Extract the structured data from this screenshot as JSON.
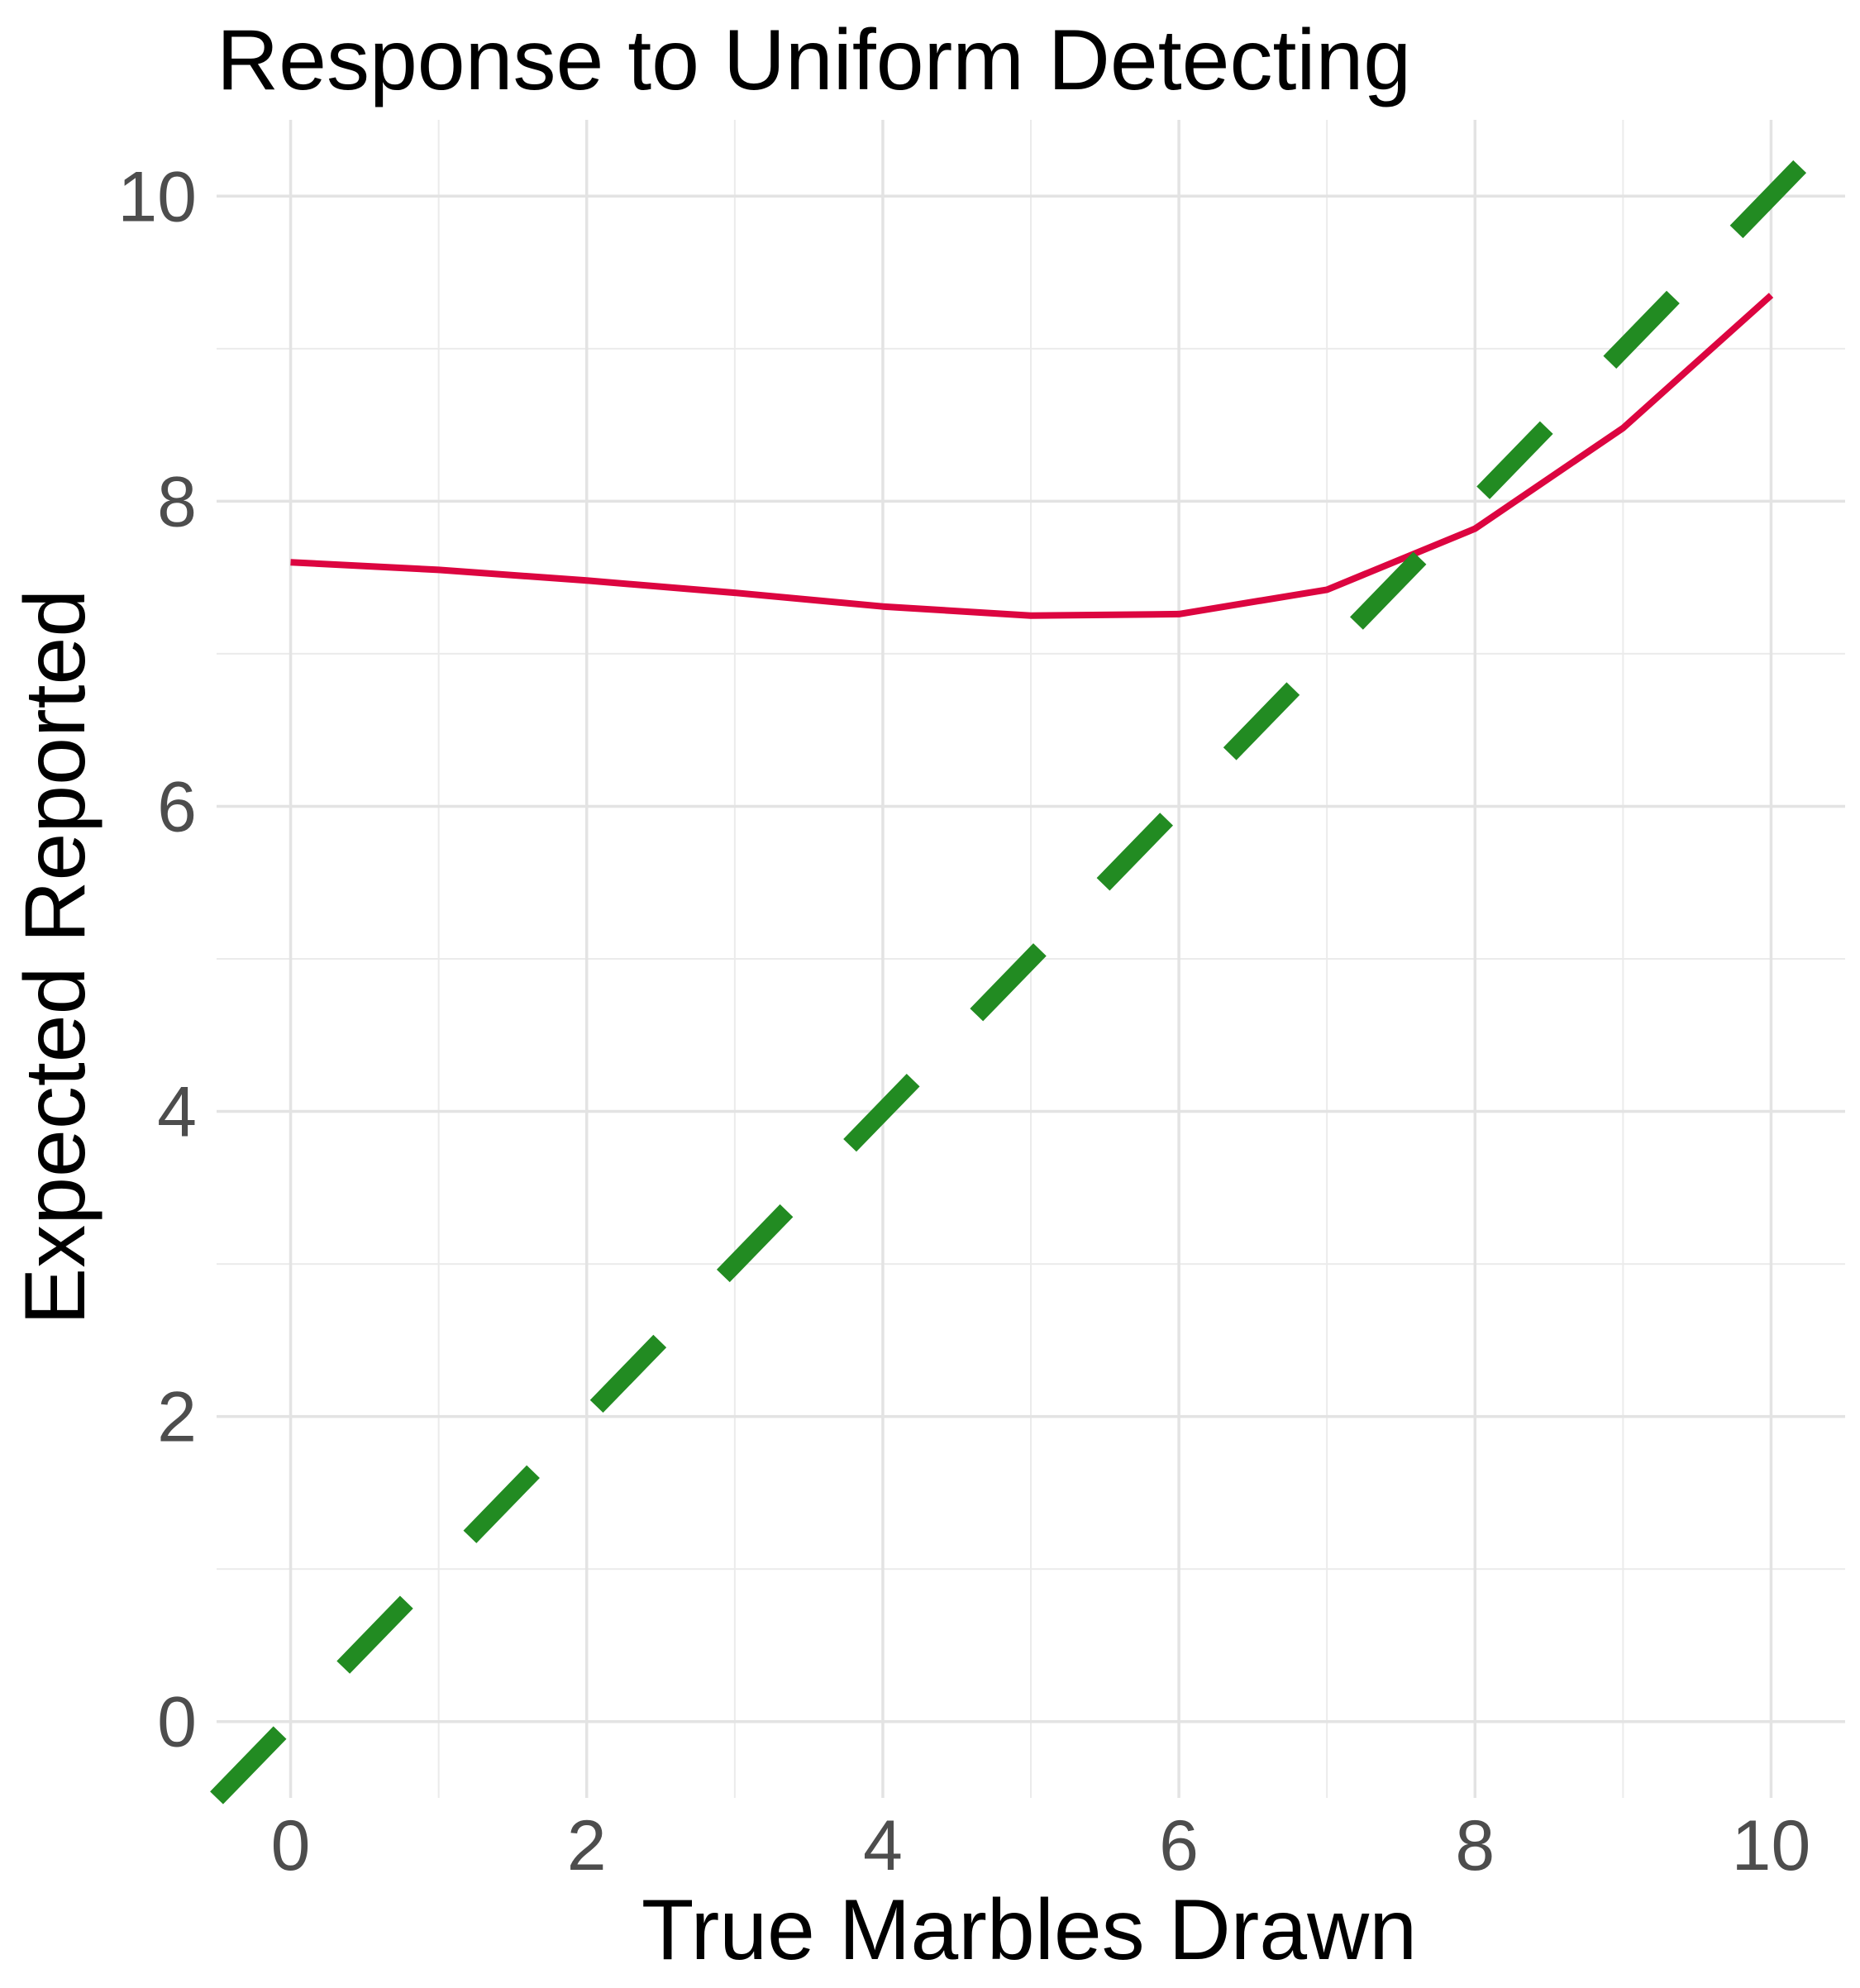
{
  "chart_data": {
    "type": "line",
    "title": "Response to Uniform Detecting",
    "xlabel": "True Marbles Drawn",
    "ylabel": "Expected Reported",
    "xlim": [
      -0.5,
      10.5
    ],
    "ylim": [
      -0.5,
      10.5
    ],
    "x_ticks": [
      0,
      2,
      4,
      6,
      8,
      10
    ],
    "y_ticks": [
      0,
      2,
      4,
      6,
      8,
      10
    ],
    "x_minor": [
      1,
      3,
      5,
      7,
      9
    ],
    "y_minor": [
      1,
      3,
      5,
      7,
      9
    ],
    "grid": true,
    "legend": "none",
    "series": [
      {
        "style": "solid",
        "color": "#dc0540",
        "x": [
          0,
          1,
          2,
          3,
          4,
          5,
          6,
          7,
          8,
          9,
          10
        ],
        "y": [
          7.6,
          7.55,
          7.48,
          7.4,
          7.31,
          7.25,
          7.26,
          7.42,
          7.82,
          8.48,
          9.35
        ]
      },
      {
        "style": "dashed",
        "color": "#228b22",
        "x": [
          -0.5,
          10.5
        ],
        "y": [
          -0.5,
          10.5
        ]
      }
    ]
  }
}
